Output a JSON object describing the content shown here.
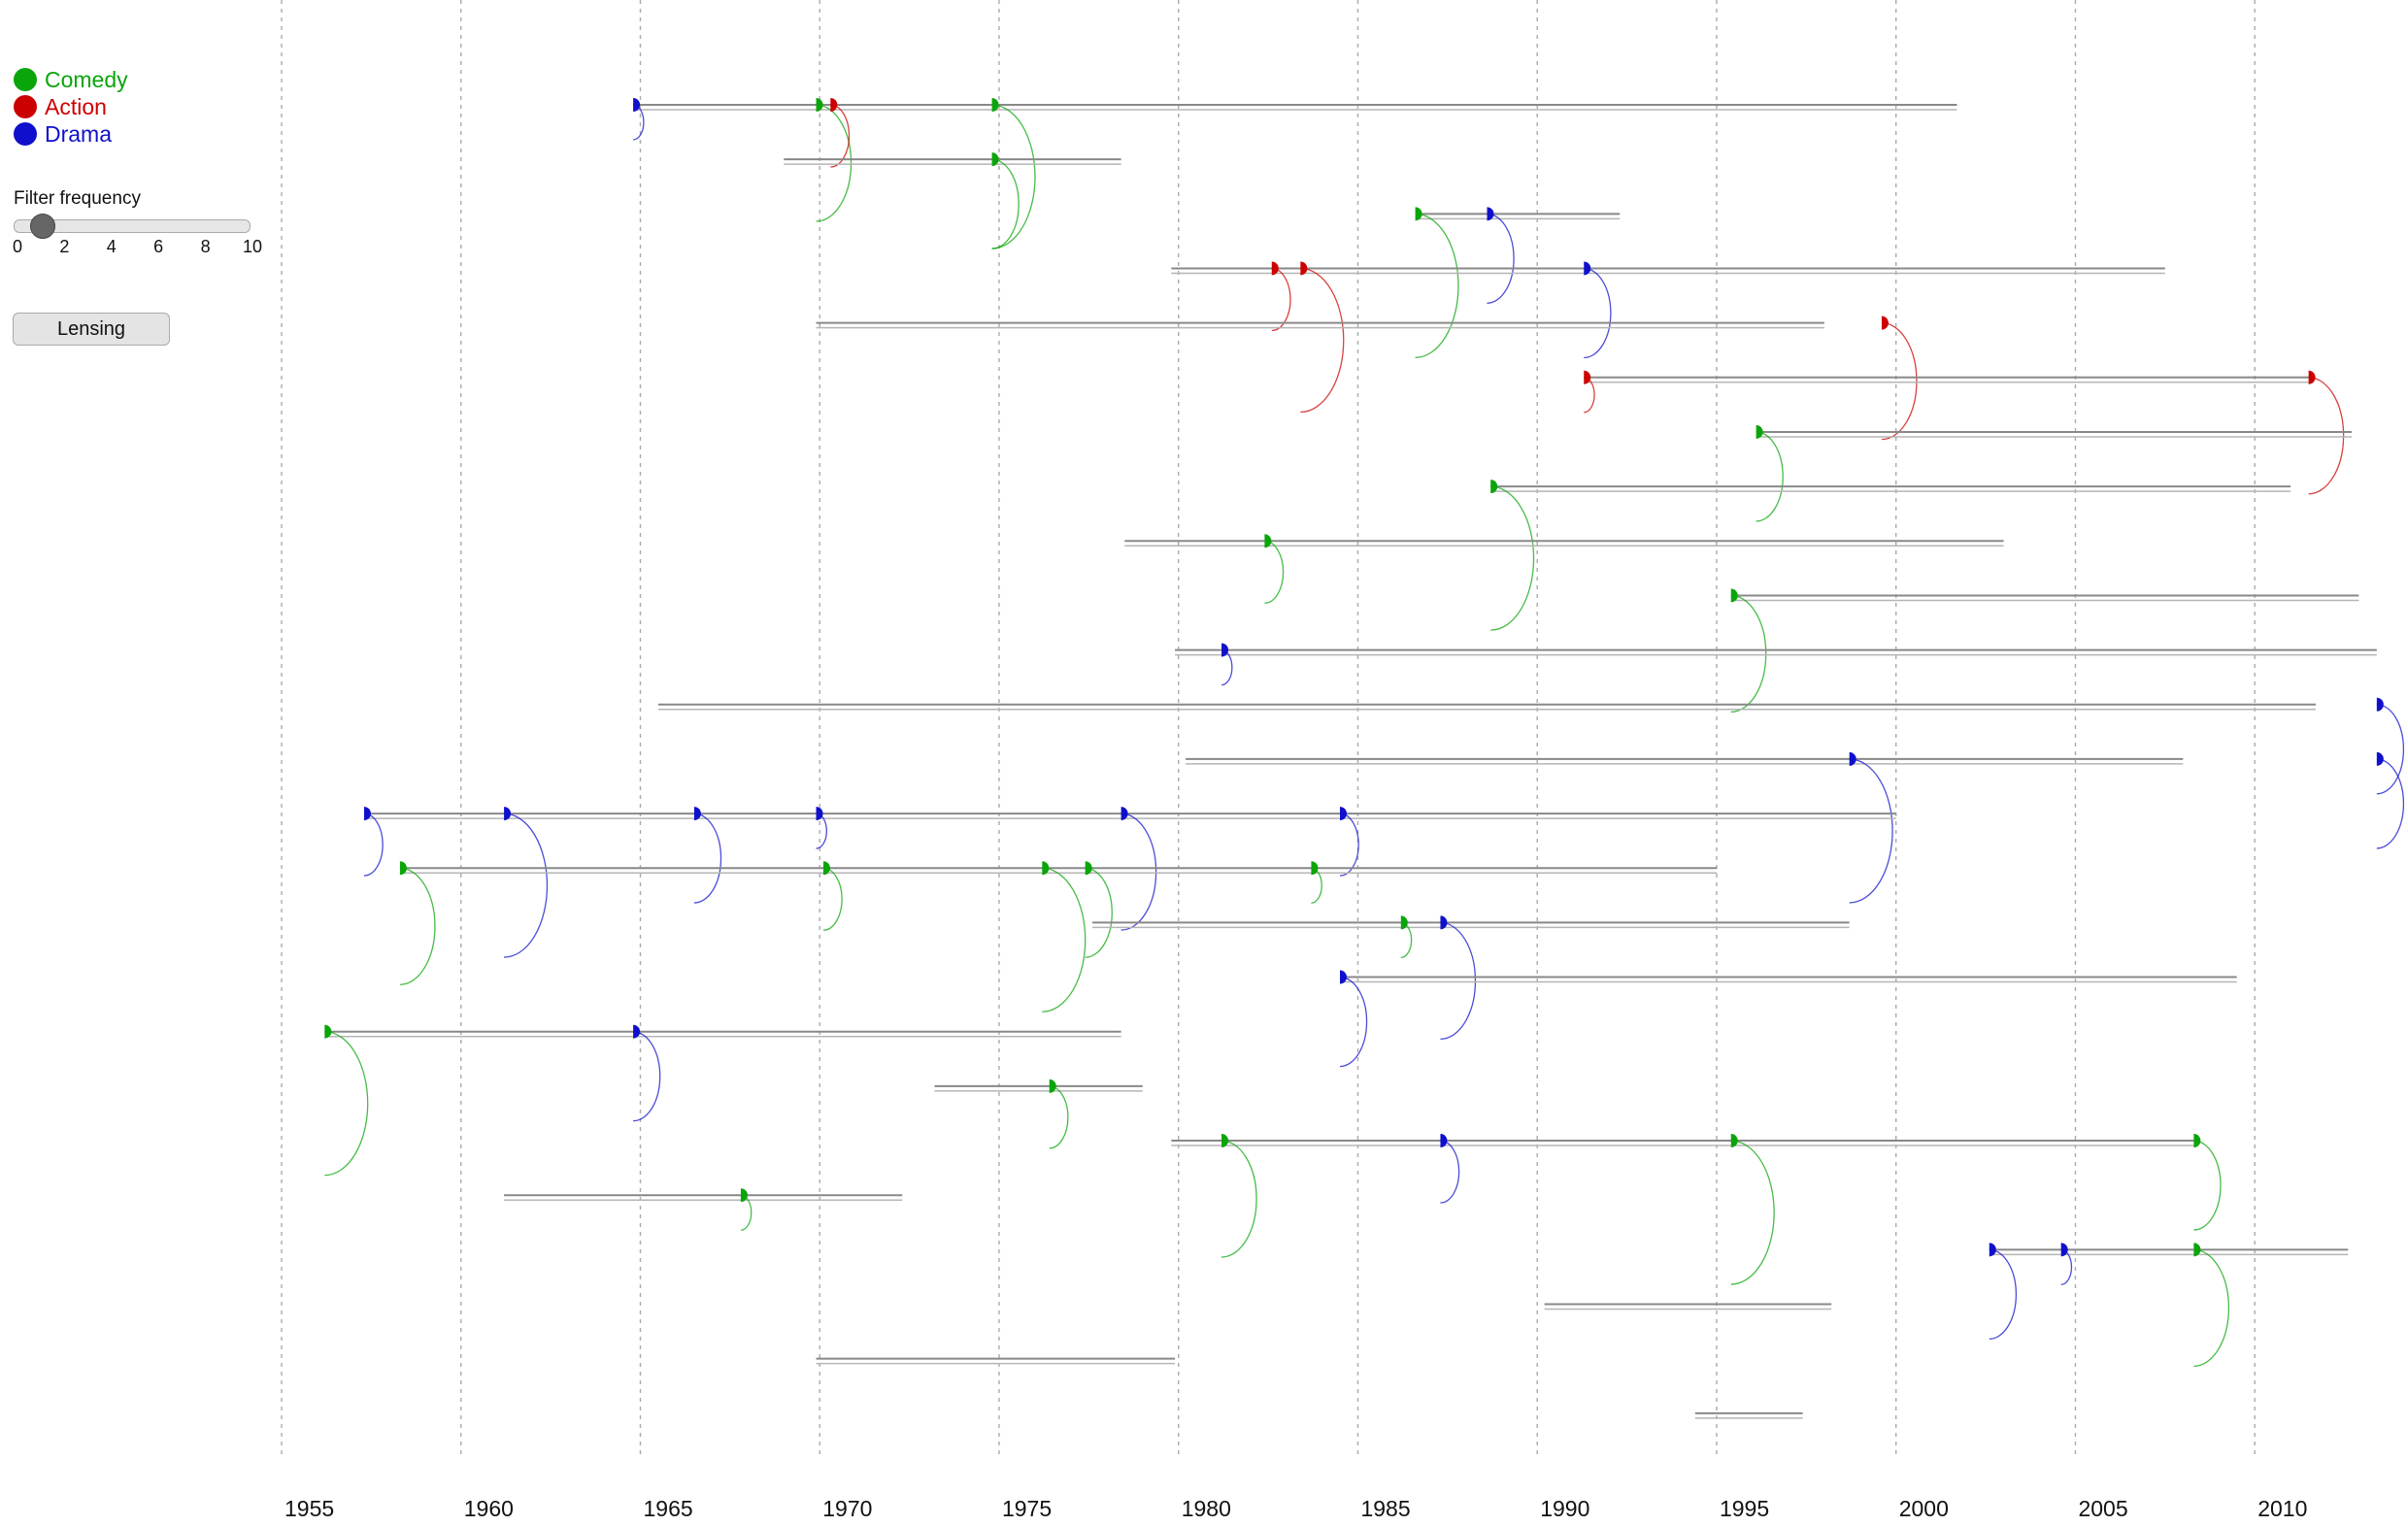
{
  "legend": [
    {
      "label": "Comedy",
      "color": "#0aa50a"
    },
    {
      "label": "Action",
      "color": "#cc0000"
    },
    {
      "label": "Drama",
      "color": "#1010cc"
    }
  ],
  "filter": {
    "label": "Filter frequency",
    "value": 1,
    "min": 0,
    "max": 10,
    "ticks": [
      "0",
      "2",
      "4",
      "6",
      "8",
      "10"
    ]
  },
  "lensing": {
    "label": "Lensing"
  },
  "chart_data": {
    "type": "timeline-arc",
    "x_ticks": [
      1955,
      1960,
      1965,
      1970,
      1975,
      1980,
      1985,
      1990,
      1995,
      2000,
      2005,
      2010
    ],
    "xlim": [
      1955,
      2014
    ],
    "grid": true,
    "legend_position": "top-left",
    "colors": {
      "Comedy": "#0aa50a",
      "Action": "#cc0000",
      "Drama": "#1010cc",
      "line": "#888888"
    },
    "rows": [
      {
        "start": 1964.8,
        "end": 2001.7,
        "markers": [
          {
            "year": 1964.8,
            "genre": "Drama"
          },
          {
            "year": 1969.9,
            "genre": "Comedy"
          },
          {
            "year": 1970.3,
            "genre": "Action"
          },
          {
            "year": 1974.8,
            "genre": "Comedy"
          }
        ]
      },
      {
        "start": 1969.0,
        "end": 1978.4,
        "markers": [
          {
            "year": 1974.8,
            "genre": "Comedy"
          }
        ]
      },
      {
        "start": 1986.6,
        "end": 1992.3,
        "markers": [
          {
            "year": 1986.6,
            "genre": "Comedy"
          },
          {
            "year": 1988.6,
            "genre": "Drama"
          }
        ]
      },
      {
        "start": 1979.8,
        "end": 2007.5,
        "markers": [
          {
            "year": 1982.6,
            "genre": "Action"
          },
          {
            "year": 1983.4,
            "genre": "Action"
          },
          {
            "year": 1991.3,
            "genre": "Drama"
          }
        ]
      },
      {
        "start": 1969.9,
        "end": 1998.0,
        "markers": [
          {
            "year": 1999.6,
            "genre": "Action"
          }
        ]
      },
      {
        "start": 1991.3,
        "end": 2011.5,
        "markers": [
          {
            "year": 1991.3,
            "genre": "Action"
          },
          {
            "year": 2011.5,
            "genre": "Action"
          }
        ]
      },
      {
        "start": 1996.1,
        "end": 2012.7,
        "markers": [
          {
            "year": 1996.1,
            "genre": "Comedy"
          }
        ]
      },
      {
        "start": 1988.7,
        "end": 2011.0,
        "markers": [
          {
            "year": 1988.7,
            "genre": "Comedy"
          }
        ]
      },
      {
        "start": 1978.5,
        "end": 2003.0,
        "markers": [
          {
            "year": 1982.4,
            "genre": "Comedy"
          }
        ]
      },
      {
        "start": 1995.4,
        "end": 2012.9,
        "markers": [
          {
            "year": 1995.4,
            "genre": "Comedy"
          }
        ]
      },
      {
        "start": 1979.9,
        "end": 2013.4,
        "markers": [
          {
            "year": 1981.2,
            "genre": "Drama"
          }
        ]
      },
      {
        "start": 1965.5,
        "end": 2011.7,
        "markers": [
          {
            "year": 2013.4,
            "genre": "Drama"
          }
        ]
      },
      {
        "start": 1980.2,
        "end": 2008.0,
        "markers": [
          {
            "year": 1998.7,
            "genre": "Drama"
          },
          {
            "year": 2013.4,
            "genre": "Drama"
          }
        ]
      },
      {
        "start": 1957.3,
        "end": 2000.0,
        "markers": [
          {
            "year": 1957.3,
            "genre": "Drama"
          },
          {
            "year": 1961.2,
            "genre": "Drama"
          },
          {
            "year": 1966.5,
            "genre": "Drama"
          },
          {
            "year": 1969.9,
            "genre": "Drama"
          },
          {
            "year": 1978.4,
            "genre": "Drama"
          },
          {
            "year": 1984.5,
            "genre": "Drama"
          }
        ]
      },
      {
        "start": 1958.3,
        "end": 1995.0,
        "markers": [
          {
            "year": 1958.3,
            "genre": "Comedy"
          },
          {
            "year": 1970.1,
            "genre": "Comedy"
          },
          {
            "year": 1976.2,
            "genre": "Comedy"
          },
          {
            "year": 1977.4,
            "genre": "Comedy"
          },
          {
            "year": 1983.7,
            "genre": "Comedy"
          }
        ]
      },
      {
        "start": 1977.6,
        "end": 1998.7,
        "markers": [
          {
            "year": 1986.2,
            "genre": "Comedy"
          },
          {
            "year": 1987.3,
            "genre": "Drama"
          }
        ]
      },
      {
        "start": 1984.5,
        "end": 2009.5,
        "markers": [
          {
            "year": 1984.5,
            "genre": "Drama"
          }
        ]
      },
      {
        "start": 1956.2,
        "end": 1978.4,
        "markers": [
          {
            "year": 1956.2,
            "genre": "Comedy"
          },
          {
            "year": 1964.8,
            "genre": "Drama"
          }
        ]
      },
      {
        "start": 1973.2,
        "end": 1979.0,
        "markers": [
          {
            "year": 1976.4,
            "genre": "Comedy"
          }
        ]
      },
      {
        "start": 1979.8,
        "end": 2008.3,
        "markers": [
          {
            "year": 1981.2,
            "genre": "Comedy"
          },
          {
            "year": 1987.3,
            "genre": "Drama"
          },
          {
            "year": 1995.4,
            "genre": "Comedy"
          },
          {
            "year": 2008.3,
            "genre": "Comedy"
          }
        ]
      },
      {
        "start": 1961.2,
        "end": 1972.3,
        "markers": [
          {
            "year": 1967.8,
            "genre": "Comedy"
          }
        ]
      },
      {
        "start": 2002.6,
        "end": 2012.6,
        "markers": [
          {
            "year": 2002.6,
            "genre": "Drama"
          },
          {
            "year": 2004.6,
            "genre": "Drama"
          },
          {
            "year": 2008.3,
            "genre": "Comedy"
          }
        ]
      },
      {
        "start": 1990.2,
        "end": 1998.2,
        "markers": []
      },
      {
        "start": 1969.9,
        "end": 1979.9,
        "markers": []
      },
      {
        "start": 1994.4,
        "end": 1997.4,
        "markers": []
      }
    ]
  }
}
